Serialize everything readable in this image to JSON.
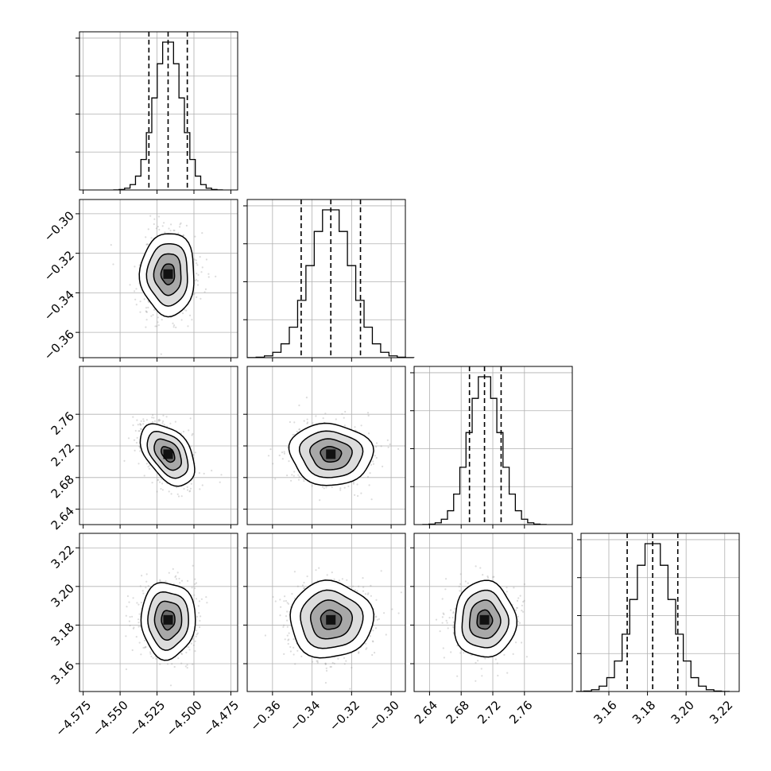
{
  "chart_data": {
    "type": "corner",
    "parameters": [
      {
        "id": "p0",
        "mean": -4.5175,
        "sd": 0.0092,
        "range": [
          -4.5775,
          -4.4704
        ],
        "ticks": [
          -4.575,
          -4.55,
          -4.525,
          -4.5,
          -4.475
        ],
        "tick_labels": [
          "−4.575",
          "−4.550",
          "−4.525",
          "−4.500",
          "−4.475"
        ],
        "quantiles": [
          -4.5305,
          -4.5175,
          -4.5045
        ]
      },
      {
        "id": "p1",
        "mean": -0.3305,
        "sd": 0.0105,
        "range": [
          -0.3728,
          -0.2928
        ],
        "ticks": [
          -0.36,
          -0.34,
          -0.32,
          -0.3
        ],
        "tick_labels": [
          "−0.36",
          "−0.34",
          "−0.32",
          "−0.30"
        ],
        "quantiles": [
          -0.3455,
          -0.3305,
          -0.3155
        ]
      },
      {
        "id": "p2",
        "mean": 2.7095,
        "sd": 0.0195,
        "range": [
          2.6205,
          2.8205
        ],
        "ticks": [
          2.64,
          2.68,
          2.72,
          2.76
        ],
        "tick_labels": [
          "2.64",
          "2.68",
          "2.72",
          "2.76"
        ],
        "quantiles": [
          2.6905,
          2.7095,
          2.7305
        ]
      },
      {
        "id": "p3",
        "mean": 3.1827,
        "sd": 0.0099,
        "range": [
          3.1456,
          3.2275
        ],
        "ticks": [
          3.16,
          3.18,
          3.2,
          3.22
        ],
        "tick_labels": [
          "3.16",
          "3.18",
          "3.20",
          "3.22"
        ],
        "quantiles": [
          3.1695,
          3.1827,
          3.1957
        ]
      }
    ],
    "correlations": [
      {
        "pair": [
          1,
          0
        ],
        "rho": 0.0
      },
      {
        "pair": [
          2,
          0
        ],
        "rho": -0.45
      },
      {
        "pair": [
          2,
          1
        ],
        "rho": -0.05
      },
      {
        "pair": [
          3,
          0
        ],
        "rho": 0.0
      },
      {
        "pair": [
          3,
          1
        ],
        "rho": 0.0
      },
      {
        "pair": [
          3,
          2
        ],
        "rho": 0.0
      }
    ],
    "histogram_bins": 20,
    "contour_sigma_levels": [
      0.5,
      1.0,
      1.5,
      2.0
    ],
    "grid": true
  }
}
